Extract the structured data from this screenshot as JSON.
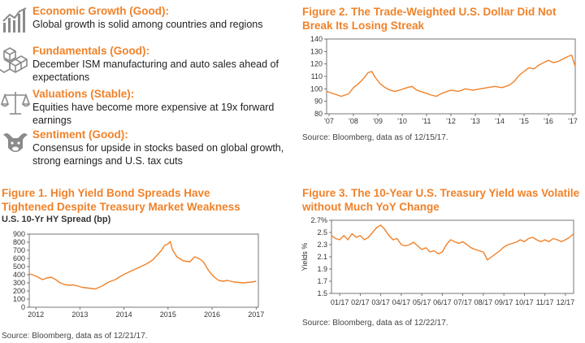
{
  "indicators": [
    {
      "icon": "bar-chart-icon",
      "title": "Economic Growth (Good):",
      "text": "Global growth is solid among countries and regions"
    },
    {
      "icon": "cubes-icon",
      "title": "Fundamentals (Good):",
      "text": "December ISM manufacturing and auto sales ahead of expectations"
    },
    {
      "icon": "scales-icon",
      "title": "Valuations (Stable):",
      "text": "Equities have become more expensive at 19x forward earnings"
    },
    {
      "icon": "bull-bear-icon",
      "title": "Sentiment (Good):",
      "text": "Consensus for upside in stocks based on global growth, strong earnings and U.S. tax cuts"
    }
  ],
  "figure1": {
    "title": "Figure 1. High Yield Bond Spreads Have Tightened Despite Treasury Market Weakness",
    "subtitle": "U.S. 10-Yr HY Spread (bp)",
    "source": "Source: Bloomberg, data as of 12/21/17."
  },
  "figure2": {
    "title": "Figure 2. The Trade-Weighted U.S. Dollar Did Not Break Its Losing Streak",
    "source": "Source: Bloomberg, data as of 12/15/17."
  },
  "figure3": {
    "title": "Figure 3. The 10-Year U.S. Treasury Yield was Volatile without Much YoY Change",
    "source": "Source: Bloomberg, data as of 12/22/17."
  },
  "colors": {
    "accent": "#f0822a",
    "text": "#2a2a2a",
    "axis": "#555555"
  },
  "chart_data": [
    {
      "id": "figure1",
      "type": "line",
      "title": "Figure 1. High Yield Bond Spreads Have Tightened Despite Treasury Market Weakness",
      "ylabel": "U.S. 10-Yr HY Spread (bp)",
      "xlabel": "",
      "ylim": [
        0,
        900
      ],
      "yticks": [
        0,
        100,
        200,
        300,
        400,
        500,
        600,
        700,
        800,
        900
      ],
      "ytick_labels": [
        "0",
        "100",
        "200",
        "300",
        "400",
        "500",
        "600",
        "700",
        "800",
        "900"
      ],
      "xlim": [
        2011.85,
        2017.05
      ],
      "xticks": [
        2012,
        2013,
        2014,
        2015,
        2016,
        2017
      ],
      "xtick_labels": [
        "2012",
        "2013",
        "2014",
        "2015",
        "2016",
        "2017"
      ],
      "series": [
        {
          "name": "HY Spread",
          "x": [
            2011.85,
            2011.95,
            2012.05,
            2012.15,
            2012.25,
            2012.35,
            2012.45,
            2012.55,
            2012.65,
            2012.75,
            2012.85,
            2012.95,
            2013.05,
            2013.2,
            2013.35,
            2013.5,
            2013.65,
            2013.8,
            2013.95,
            2014.1,
            2014.3,
            2014.5,
            2014.65,
            2014.75,
            2014.85,
            2014.92,
            2015.0,
            2015.05,
            2015.1,
            2015.2,
            2015.35,
            2015.5,
            2015.6,
            2015.7,
            2015.8,
            2015.9,
            2015.95,
            2016.05,
            2016.15,
            2016.25,
            2016.35,
            2016.5,
            2016.7,
            2016.9,
            2017.0
          ],
          "values": [
            410,
            395,
            370,
            340,
            360,
            370,
            340,
            300,
            280,
            270,
            275,
            260,
            245,
            235,
            225,
            260,
            310,
            340,
            390,
            430,
            480,
            530,
            580,
            640,
            700,
            760,
            780,
            810,
            710,
            620,
            570,
            560,
            620,
            600,
            560,
            470,
            430,
            370,
            330,
            320,
            330,
            310,
            300,
            310,
            320
          ]
        }
      ]
    },
    {
      "id": "figure2",
      "type": "line",
      "title": "Figure 2. The Trade-Weighted U.S. Dollar Did Not Break Its Losing Streak",
      "xlabel": "",
      "ylabel": "",
      "ylim": [
        80,
        140
      ],
      "yticks": [
        80,
        90,
        100,
        110,
        120,
        130,
        140
      ],
      "ytick_labels": [
        "80",
        "90",
        "100",
        "110",
        "120",
        "130",
        "140"
      ],
      "xlim": [
        2006.9,
        2017.1
      ],
      "xticks": [
        2007,
        2008,
        2009,
        2010,
        2011,
        2012,
        2013,
        2014,
        2015,
        2016,
        2017
      ],
      "xtick_labels": [
        "'07",
        "'08",
        "'09",
        "'10",
        "'11",
        "'12",
        "'13",
        "'14",
        "'15",
        "'16",
        "'17"
      ],
      "series": [
        {
          "name": "Trade-Weighted USD",
          "x": [
            2006.9,
            2007.2,
            2007.5,
            2007.8,
            2008.0,
            2008.2,
            2008.4,
            2008.6,
            2008.75,
            2008.9,
            2009.1,
            2009.3,
            2009.5,
            2009.7,
            2009.9,
            2010.2,
            2010.4,
            2010.6,
            2010.9,
            2011.2,
            2011.4,
            2011.7,
            2012.0,
            2012.3,
            2012.6,
            2012.9,
            2013.2,
            2013.5,
            2013.8,
            2014.1,
            2014.4,
            2014.6,
            2014.8,
            2015.0,
            2015.2,
            2015.4,
            2015.6,
            2015.8,
            2016.0,
            2016.2,
            2016.4,
            2016.6,
            2016.8,
            2016.95,
            2017.0,
            2017.1
          ],
          "values": [
            98,
            96,
            94,
            96,
            101,
            104,
            108,
            113,
            114,
            109,
            104,
            101,
            99,
            98,
            99,
            101,
            102,
            99,
            97,
            95,
            94,
            97,
            99,
            98,
            100,
            99,
            100,
            101,
            102,
            101,
            103,
            106,
            111,
            114,
            117,
            116,
            119,
            121,
            123,
            121,
            122,
            124,
            126,
            127,
            124,
            118
          ]
        }
      ]
    },
    {
      "id": "figure3",
      "type": "line",
      "title": "Figure 3. The 10-Year U.S. Treasury Yield was Volatile without Much YoY Change",
      "xlabel": "",
      "ylabel": "Yields %",
      "ylim": [
        1.5,
        2.7
      ],
      "yticks": [
        1.5,
        1.7,
        1.9,
        2.1,
        2.3,
        2.5,
        2.7
      ],
      "ytick_labels": [
        "1.5",
        "1.7",
        "1.9",
        "2.1",
        "2.3",
        "2.5",
        "2.7%"
      ],
      "xlim": [
        0.6,
        12.4
      ],
      "xticks": [
        1,
        2,
        3,
        4,
        5,
        6,
        7,
        8,
        9,
        10,
        11,
        12
      ],
      "xtick_labels": [
        "01/17",
        "02/17",
        "03/17",
        "04/17",
        "05/17",
        "06/17",
        "07/17",
        "08/17",
        "09/17",
        "10/17",
        "11/17",
        "12/17"
      ],
      "series": [
        {
          "name": "10-Yr Yield",
          "x": [
            0.6,
            0.8,
            1.0,
            1.2,
            1.4,
            1.6,
            1.8,
            2.0,
            2.2,
            2.4,
            2.6,
            2.8,
            3.0,
            3.2,
            3.4,
            3.6,
            3.8,
            4.0,
            4.2,
            4.4,
            4.6,
            4.8,
            5.0,
            5.2,
            5.4,
            5.6,
            5.8,
            6.0,
            6.2,
            6.4,
            6.6,
            6.8,
            7.0,
            7.2,
            7.4,
            7.6,
            7.8,
            8.0,
            8.2,
            8.4,
            8.6,
            8.8,
            9.0,
            9.2,
            9.4,
            9.6,
            9.8,
            10.0,
            10.2,
            10.4,
            10.6,
            10.8,
            11.0,
            11.2,
            11.4,
            11.6,
            11.8,
            12.0,
            12.2,
            12.4
          ],
          "values": [
            2.45,
            2.4,
            2.38,
            2.45,
            2.38,
            2.48,
            2.42,
            2.45,
            2.38,
            2.42,
            2.5,
            2.58,
            2.62,
            2.55,
            2.45,
            2.38,
            2.4,
            2.3,
            2.28,
            2.3,
            2.34,
            2.28,
            2.22,
            2.25,
            2.18,
            2.2,
            2.15,
            2.18,
            2.3,
            2.38,
            2.35,
            2.32,
            2.35,
            2.3,
            2.25,
            2.22,
            2.2,
            2.18,
            2.05,
            2.1,
            2.15,
            2.2,
            2.26,
            2.3,
            2.32,
            2.34,
            2.38,
            2.35,
            2.4,
            2.42,
            2.38,
            2.35,
            2.38,
            2.35,
            2.4,
            2.38,
            2.35,
            2.38,
            2.42,
            2.48
          ]
        }
      ]
    }
  ]
}
